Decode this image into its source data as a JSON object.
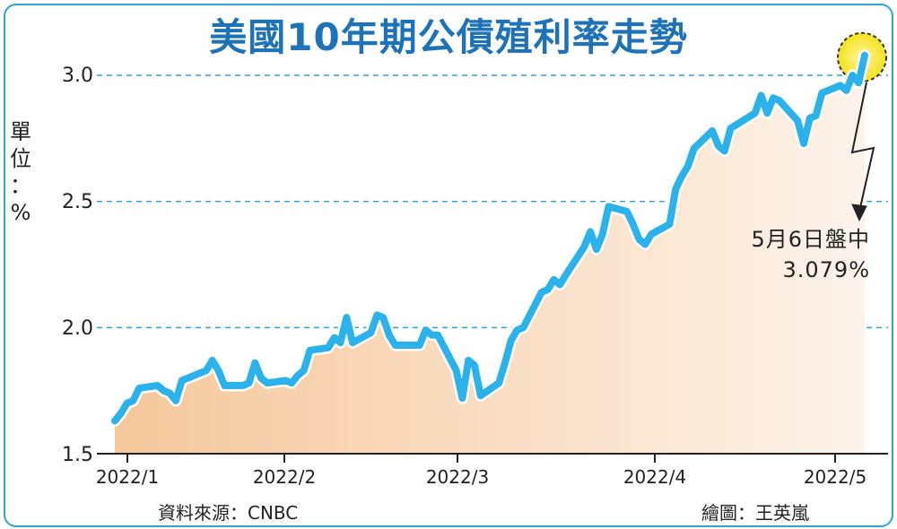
{
  "title": "美國10年期公債殖利率走勢",
  "unit_label": [
    "單",
    "位",
    "：",
    "%"
  ],
  "source": "資料來源：CNBC",
  "credit": "繪圖：王英嵐",
  "annotation": {
    "line1": "5月6日盤中",
    "line2": "3.079%"
  },
  "colors": {
    "line": "#2cb2ea",
    "title": "#1e73b8",
    "grid": "#2aa5d8",
    "fill_left": "#f5c79a",
    "fill_right": "#fdf3ea",
    "highlight": "#f3e11c"
  },
  "chart_data": {
    "type": "area",
    "title": "美國10年期公債殖利率走勢",
    "xlabel": "",
    "ylabel": "單位：%",
    "ylim": [
      1.5,
      3.0
    ],
    "yticks": [
      "1.5",
      "2.0",
      "2.5",
      "3.0"
    ],
    "xticks": [
      "2022/1",
      "2022/2",
      "2022/3",
      "2022/4",
      "2022/5"
    ],
    "grid": "horizontal dashed",
    "x": [
      "2022-01-03",
      "2022-01-04",
      "2022-01-05",
      "2022-01-06",
      "2022-01-07",
      "2022-01-10",
      "2022-01-11",
      "2022-01-12",
      "2022-01-13",
      "2022-01-14",
      "2022-01-18",
      "2022-01-19",
      "2022-01-20",
      "2022-01-21",
      "2022-01-24",
      "2022-01-25",
      "2022-01-26",
      "2022-01-27",
      "2022-01-28",
      "2022-01-31",
      "2022-02-01",
      "2022-02-02",
      "2022-02-03",
      "2022-02-04",
      "2022-02-07",
      "2022-02-08",
      "2022-02-09",
      "2022-02-10",
      "2022-02-11",
      "2022-02-14",
      "2022-02-15",
      "2022-02-16",
      "2022-02-17",
      "2022-02-18",
      "2022-02-22",
      "2022-02-23",
      "2022-02-24",
      "2022-02-25",
      "2022-02-28",
      "2022-03-01",
      "2022-03-02",
      "2022-03-03",
      "2022-03-04",
      "2022-03-07",
      "2022-03-08",
      "2022-03-09",
      "2022-03-10",
      "2022-03-11",
      "2022-03-14",
      "2022-03-15",
      "2022-03-16",
      "2022-03-17",
      "2022-03-18",
      "2022-03-21",
      "2022-03-22",
      "2022-03-23",
      "2022-03-24",
      "2022-03-25",
      "2022-03-28",
      "2022-03-29",
      "2022-03-30",
      "2022-03-31",
      "2022-04-01",
      "2022-04-04",
      "2022-04-05",
      "2022-04-06",
      "2022-04-07",
      "2022-04-08",
      "2022-04-11",
      "2022-04-12",
      "2022-04-13",
      "2022-04-14",
      "2022-04-18",
      "2022-04-19",
      "2022-04-20",
      "2022-04-21",
      "2022-04-22",
      "2022-04-25",
      "2022-04-26",
      "2022-04-27",
      "2022-04-28",
      "2022-04-29",
      "2022-05-02",
      "2022-05-03",
      "2022-05-04",
      "2022-05-05",
      "2022-05-06"
    ],
    "series": [
      {
        "values": [
          1.63,
          1.66,
          1.7,
          1.71,
          1.76,
          1.77,
          1.75,
          1.74,
          1.71,
          1.79,
          1.83,
          1.87,
          1.83,
          1.77,
          1.77,
          1.78,
          1.86,
          1.8,
          1.78,
          1.79,
          1.78,
          1.81,
          1.83,
          1.91,
          1.92,
          1.96,
          1.94,
          2.04,
          1.94,
          1.98,
          2.05,
          2.04,
          1.97,
          1.93,
          1.93,
          1.99,
          1.97,
          1.97,
          1.83,
          1.72,
          1.87,
          1.85,
          1.73,
          1.78,
          1.86,
          1.95,
          1.99,
          2.0,
          2.14,
          2.15,
          2.19,
          2.17,
          2.21,
          2.32,
          2.38,
          2.31,
          2.37,
          2.48,
          2.46,
          2.41,
          2.35,
          2.33,
          2.37,
          2.41,
          2.55,
          2.6,
          2.64,
          2.71,
          2.78,
          2.72,
          2.7,
          2.79,
          2.85,
          2.92,
          2.85,
          2.91,
          2.9,
          2.82,
          2.73,
          2.83,
          2.84,
          2.93,
          2.96,
          2.94,
          3.0,
          2.97,
          3.079
        ]
      }
    ],
    "annotations": [
      {
        "text": "5月6日盤中 3.079%",
        "x": "2022-05-06",
        "y": 3.079
      }
    ]
  }
}
